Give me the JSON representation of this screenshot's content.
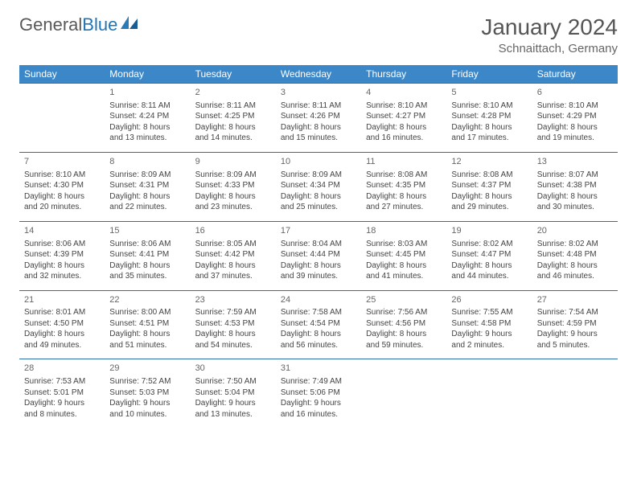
{
  "logo": {
    "word1": "General",
    "word2": "Blue"
  },
  "colors": {
    "header_bg": "#3b87c8",
    "header_text": "#ffffff",
    "row_border": "#2f6fa8",
    "logo_gray": "#5a5a5a",
    "logo_blue": "#2176b8",
    "title": "#555555",
    "location": "#666666",
    "cell_text": "#444444",
    "daynum": "#666666"
  },
  "title": "January 2024",
  "location": "Schnaittach, Germany",
  "weekdays": [
    "Sunday",
    "Monday",
    "Tuesday",
    "Wednesday",
    "Thursday",
    "Friday",
    "Saturday"
  ],
  "weeks": [
    [
      null,
      {
        "d": "1",
        "sr": "8:11 AM",
        "ss": "4:24 PM",
        "dl": "8 hours and 13 minutes."
      },
      {
        "d": "2",
        "sr": "8:11 AM",
        "ss": "4:25 PM",
        "dl": "8 hours and 14 minutes."
      },
      {
        "d": "3",
        "sr": "8:11 AM",
        "ss": "4:26 PM",
        "dl": "8 hours and 15 minutes."
      },
      {
        "d": "4",
        "sr": "8:10 AM",
        "ss": "4:27 PM",
        "dl": "8 hours and 16 minutes."
      },
      {
        "d": "5",
        "sr": "8:10 AM",
        "ss": "4:28 PM",
        "dl": "8 hours and 17 minutes."
      },
      {
        "d": "6",
        "sr": "8:10 AM",
        "ss": "4:29 PM",
        "dl": "8 hours and 19 minutes."
      }
    ],
    [
      {
        "d": "7",
        "sr": "8:10 AM",
        "ss": "4:30 PM",
        "dl": "8 hours and 20 minutes."
      },
      {
        "d": "8",
        "sr": "8:09 AM",
        "ss": "4:31 PM",
        "dl": "8 hours and 22 minutes."
      },
      {
        "d": "9",
        "sr": "8:09 AM",
        "ss": "4:33 PM",
        "dl": "8 hours and 23 minutes."
      },
      {
        "d": "10",
        "sr": "8:09 AM",
        "ss": "4:34 PM",
        "dl": "8 hours and 25 minutes."
      },
      {
        "d": "11",
        "sr": "8:08 AM",
        "ss": "4:35 PM",
        "dl": "8 hours and 27 minutes."
      },
      {
        "d": "12",
        "sr": "8:08 AM",
        "ss": "4:37 PM",
        "dl": "8 hours and 29 minutes."
      },
      {
        "d": "13",
        "sr": "8:07 AM",
        "ss": "4:38 PM",
        "dl": "8 hours and 30 minutes."
      }
    ],
    [
      {
        "d": "14",
        "sr": "8:06 AM",
        "ss": "4:39 PM",
        "dl": "8 hours and 32 minutes."
      },
      {
        "d": "15",
        "sr": "8:06 AM",
        "ss": "4:41 PM",
        "dl": "8 hours and 35 minutes."
      },
      {
        "d": "16",
        "sr": "8:05 AM",
        "ss": "4:42 PM",
        "dl": "8 hours and 37 minutes."
      },
      {
        "d": "17",
        "sr": "8:04 AM",
        "ss": "4:44 PM",
        "dl": "8 hours and 39 minutes."
      },
      {
        "d": "18",
        "sr": "8:03 AM",
        "ss": "4:45 PM",
        "dl": "8 hours and 41 minutes."
      },
      {
        "d": "19",
        "sr": "8:02 AM",
        "ss": "4:47 PM",
        "dl": "8 hours and 44 minutes."
      },
      {
        "d": "20",
        "sr": "8:02 AM",
        "ss": "4:48 PM",
        "dl": "8 hours and 46 minutes."
      }
    ],
    [
      {
        "d": "21",
        "sr": "8:01 AM",
        "ss": "4:50 PM",
        "dl": "8 hours and 49 minutes."
      },
      {
        "d": "22",
        "sr": "8:00 AM",
        "ss": "4:51 PM",
        "dl": "8 hours and 51 minutes."
      },
      {
        "d": "23",
        "sr": "7:59 AM",
        "ss": "4:53 PM",
        "dl": "8 hours and 54 minutes."
      },
      {
        "d": "24",
        "sr": "7:58 AM",
        "ss": "4:54 PM",
        "dl": "8 hours and 56 minutes."
      },
      {
        "d": "25",
        "sr": "7:56 AM",
        "ss": "4:56 PM",
        "dl": "8 hours and 59 minutes."
      },
      {
        "d": "26",
        "sr": "7:55 AM",
        "ss": "4:58 PM",
        "dl": "9 hours and 2 minutes."
      },
      {
        "d": "27",
        "sr": "7:54 AM",
        "ss": "4:59 PM",
        "dl": "9 hours and 5 minutes."
      }
    ],
    [
      {
        "d": "28",
        "sr": "7:53 AM",
        "ss": "5:01 PM",
        "dl": "9 hours and 8 minutes."
      },
      {
        "d": "29",
        "sr": "7:52 AM",
        "ss": "5:03 PM",
        "dl": "9 hours and 10 minutes."
      },
      {
        "d": "30",
        "sr": "7:50 AM",
        "ss": "5:04 PM",
        "dl": "9 hours and 13 minutes."
      },
      {
        "d": "31",
        "sr": "7:49 AM",
        "ss": "5:06 PM",
        "dl": "9 hours and 16 minutes."
      },
      null,
      null,
      null
    ]
  ],
  "labels": {
    "sunrise": "Sunrise: ",
    "sunset": "Sunset: ",
    "daylight": "Daylight: "
  }
}
